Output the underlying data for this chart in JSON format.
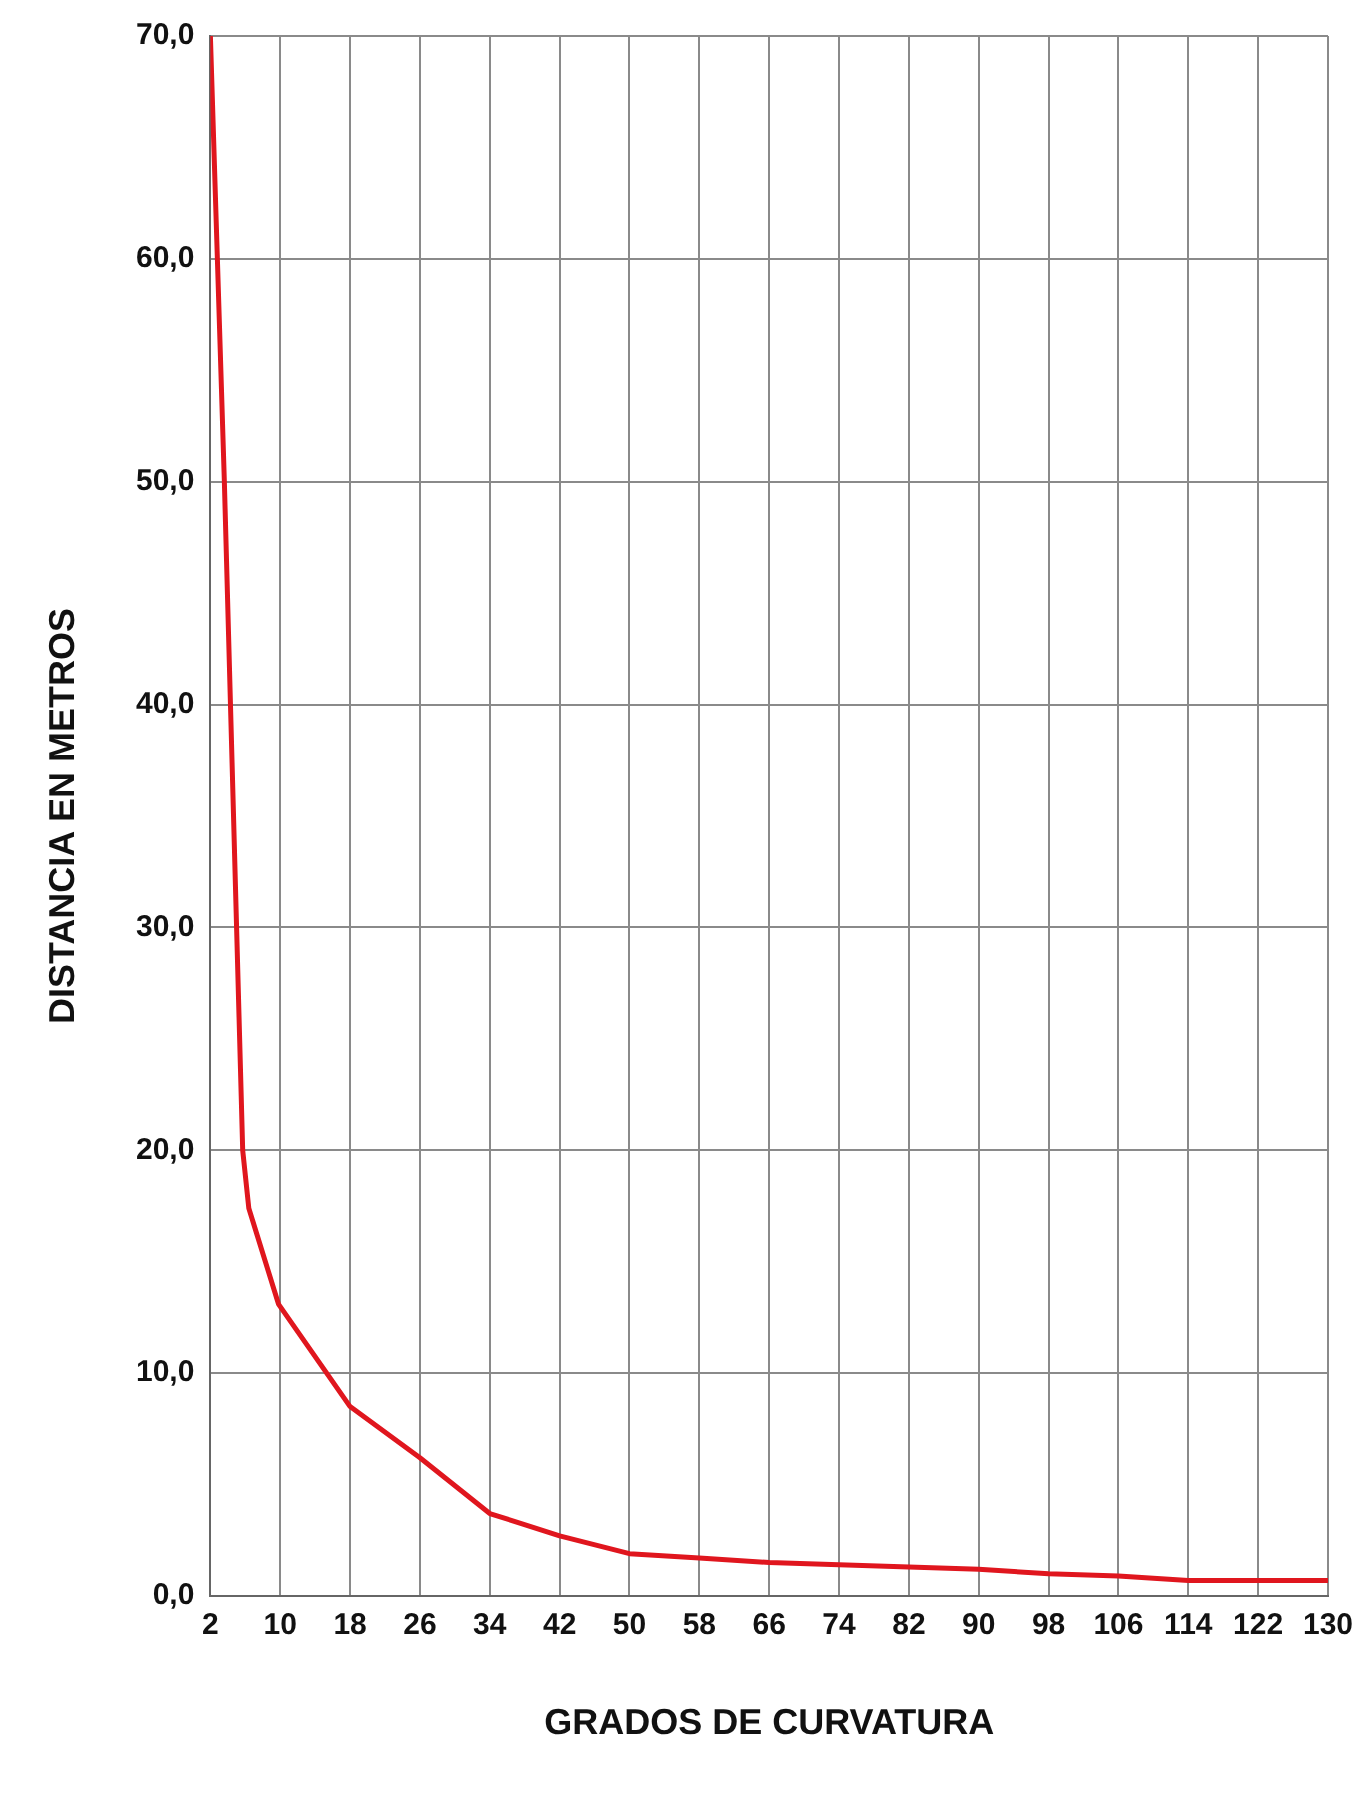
{
  "chart_data": {
    "type": "line",
    "xlabel": "GRADOS DE CURVATURA",
    "ylabel": "DISTANCIA EN METROS",
    "x": [
      2,
      2.8,
      3.6,
      4.3,
      5,
      5.7,
      6.4,
      9.8,
      18,
      26,
      34,
      42,
      50,
      58,
      66,
      74,
      82,
      90,
      98,
      106,
      114,
      122,
      130
    ],
    "series": [
      {
        "color": "#e0161e",
        "values": [
          70,
          60,
          50,
          40,
          30,
          20,
          17.4,
          13.1,
          8.5,
          6.2,
          3.7,
          2.7,
          1.9,
          1.7,
          1.5,
          1.4,
          1.3,
          1.2,
          1.0,
          0.9,
          0.7,
          0.7,
          0.7
        ]
      }
    ],
    "xlim": [
      2,
      130
    ],
    "xticks": [
      2,
      10,
      18,
      26,
      34,
      42,
      50,
      58,
      66,
      74,
      82,
      90,
      98,
      106,
      114,
      122,
      130
    ],
    "ylim": [
      0,
      70
    ],
    "yticks": [
      {
        "value": 0,
        "label": "0,0"
      },
      {
        "value": 10,
        "label": "10,0"
      },
      {
        "value": 20,
        "label": "20,0"
      },
      {
        "value": 30,
        "label": "30,0"
      },
      {
        "value": 40,
        "label": "40,0"
      },
      {
        "value": 50,
        "label": "50,0"
      },
      {
        "value": 60,
        "label": "60,0"
      },
      {
        "value": 70,
        "label": "70,0"
      }
    ],
    "grid": true,
    "legend": false,
    "marker": "none",
    "line_style": "solid"
  }
}
